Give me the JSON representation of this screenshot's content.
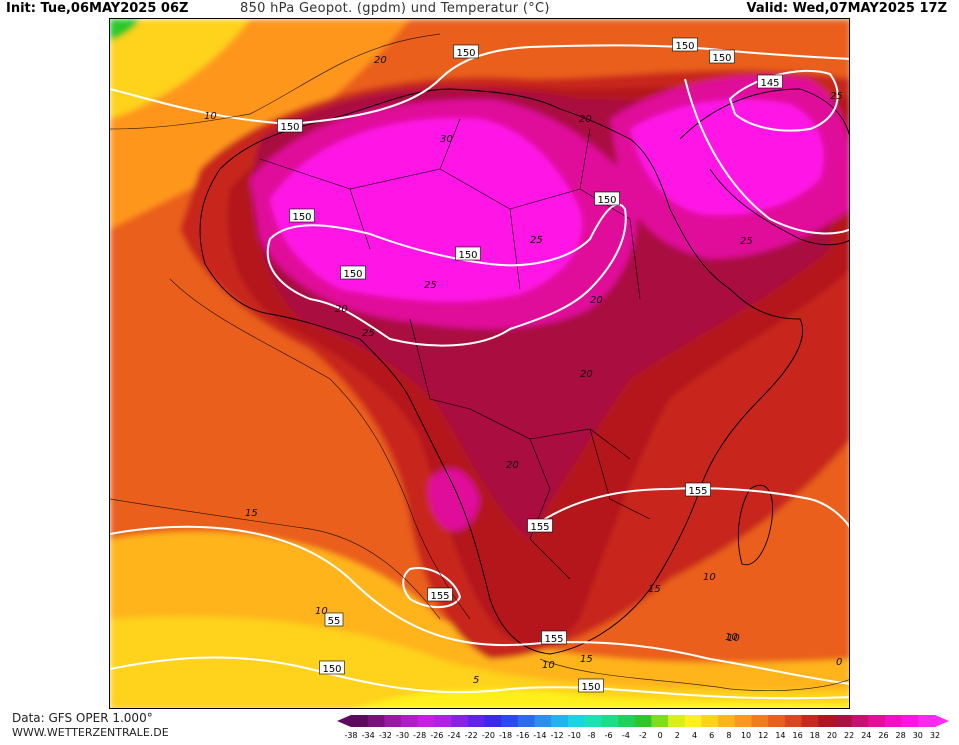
{
  "header": {
    "init": "Init: Tue,06MAY2025 06Z",
    "title": "850 hPa Geopot. (gpdm) und Temperatur (°C)",
    "valid": "Valid: Wed,07MAY2025 17Z"
  },
  "footer": {
    "data": "Data: GFS OPER 1.000°",
    "site": "WWW.WETTERZENTRALE.DE"
  },
  "legend": {
    "values": [
      -38,
      -34,
      -32,
      -30,
      -28,
      -26,
      -24,
      -22,
      -20,
      -18,
      -16,
      -14,
      -12,
      -10,
      -8,
      -6,
      -4,
      -2,
      0,
      2,
      4,
      6,
      8,
      10,
      12,
      14,
      16,
      18,
      20,
      22,
      24,
      26,
      28,
      30,
      32
    ],
    "colors": [
      "#5b0a5e",
      "#7a1080",
      "#9a18a5",
      "#b21cc8",
      "#c81ee2",
      "#b020e6",
      "#8a22e6",
      "#5f24e6",
      "#3a2ae6",
      "#2a4af0",
      "#2a6cf0",
      "#2a90f0",
      "#22b4f0",
      "#1ed2e6",
      "#1ee0b4",
      "#1edc8a",
      "#1ed25a",
      "#2cc82a",
      "#7ede1e",
      "#d8ee1e",
      "#fff01e",
      "#ffd21e",
      "#ffb41e",
      "#ff961e",
      "#f57a1e",
      "#ea5e1e",
      "#dc461e",
      "#c8281e",
      "#b4141e",
      "#aa1040",
      "#c81070",
      "#e0109a",
      "#f010c8",
      "#ff14e6",
      "#ff2af0"
    ]
  },
  "map": {
    "geopotential_labels": [
      {
        "text": "150"
      },
      {
        "text": "150"
      },
      {
        "text": "150"
      },
      {
        "text": "150"
      },
      {
        "text": "150"
      },
      {
        "text": "150"
      },
      {
        "text": "150"
      },
      {
        "text": "150"
      },
      {
        "text": "145"
      },
      {
        "text": "155"
      },
      {
        "text": "155"
      },
      {
        "text": "155"
      },
      {
        "text": "155"
      },
      {
        "text": "55"
      },
      {
        "text": "150"
      },
      {
        "text": "150"
      }
    ],
    "temperature_labels": [
      {
        "text": "20"
      },
      {
        "text": "10"
      },
      {
        "text": "30"
      },
      {
        "text": "20"
      },
      {
        "text": "25"
      },
      {
        "text": "25"
      },
      {
        "text": "25"
      },
      {
        "text": "20"
      },
      {
        "text": "25"
      },
      {
        "text": "20"
      },
      {
        "text": "20"
      },
      {
        "text": "15"
      },
      {
        "text": "15"
      },
      {
        "text": "10"
      },
      {
        "text": "10"
      },
      {
        "text": "10"
      },
      {
        "text": "15"
      },
      {
        "text": "5"
      },
      {
        "text": "10"
      },
      {
        "text": "0"
      },
      {
        "text": "10"
      },
      {
        "text": "25"
      },
      {
        "text": "20"
      }
    ],
    "colors": {
      "hot_magenta": "#ff14e6",
      "magenta": "#e0109a",
      "crimson": "#aa1040",
      "dark_red": "#b4141e",
      "red": "#c8281e",
      "red_orange": "#dc461e",
      "orange": "#ea5e1e",
      "orange2": "#f57a1e",
      "amber": "#ff961e",
      "yellow_orange": "#ffb41e",
      "gold": "#ffd21e",
      "yellow": "#fff01e",
      "green": "#2cc82a",
      "contour_white": "#ffffff",
      "coast_black": "#000000"
    }
  }
}
